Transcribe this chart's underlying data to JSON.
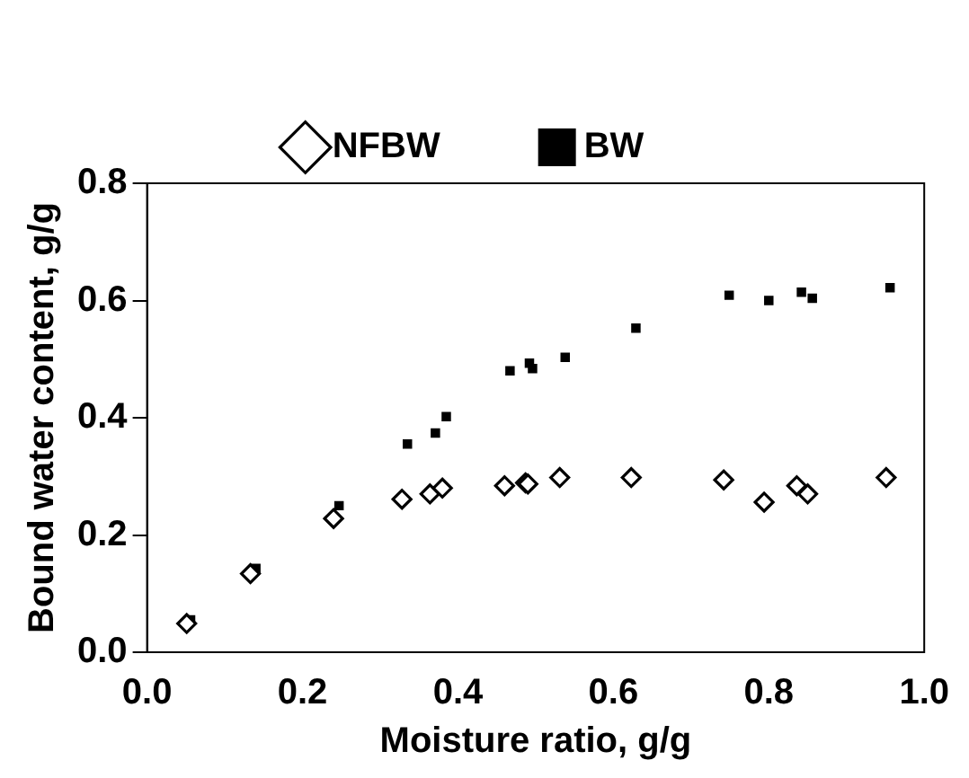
{
  "chart_data": {
    "type": "scatter",
    "xlabel": "Moisture ratio, g/g",
    "ylabel": "Bound water content, g/g",
    "xlim": [
      0,
      1
    ],
    "xticks": [
      {
        "value": 0,
        "label": "0.0"
      },
      {
        "value": 0.2,
        "label": "0.2"
      },
      {
        "value": 0.4,
        "label": "0.4"
      },
      {
        "value": 0.6,
        "label": "0.6"
      },
      {
        "value": 0.8,
        "label": "0.8"
      },
      {
        "value": 1,
        "label": "1.0"
      }
    ],
    "ylim": [
      0,
      0.8
    ],
    "yticks": [
      {
        "value": 0,
        "label": "0.0"
      },
      {
        "value": 0.2,
        "label": "0.2"
      },
      {
        "value": 0.4,
        "label": "0.4"
      },
      {
        "value": 0.6,
        "label": "0.6"
      },
      {
        "value": 0.8,
        "label": "0.8"
      }
    ],
    "grid": false,
    "legend": "top",
    "series": [
      {
        "name": "NFBW",
        "color": "#000000",
        "marker": "diamond",
        "x": [
          0.051,
          0.133,
          0.24,
          0.328,
          0.364,
          0.38,
          0.46,
          0.487,
          0.49,
          0.531,
          0.623,
          0.742,
          0.794,
          0.836,
          0.85,
          0.951
        ],
        "values": [
          0.049,
          0.134,
          0.228,
          0.261,
          0.27,
          0.28,
          0.284,
          0.289,
          0.287,
          0.298,
          0.298,
          0.294,
          0.256,
          0.284,
          0.27,
          0.298
        ]
      },
      {
        "name": "BW",
        "color": "#000000",
        "marker": "square",
        "x": [
          0.056,
          0.14,
          0.247,
          0.335,
          0.371,
          0.385,
          0.467,
          0.492,
          0.496,
          0.538,
          0.629,
          0.749,
          0.8,
          0.842,
          0.856,
          0.956
        ],
        "values": [
          0.055,
          0.143,
          0.25,
          0.355,
          0.374,
          0.402,
          0.48,
          0.493,
          0.484,
          0.503,
          0.553,
          0.609,
          0.6,
          0.614,
          0.604,
          0.622
        ]
      }
    ]
  }
}
